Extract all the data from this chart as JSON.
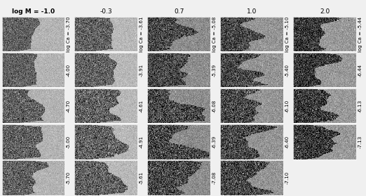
{
  "col_labels": [
    "log M = -1.0",
    "-0.3",
    "0.7",
    "1.0",
    "2.0"
  ],
  "col_label_fontsize": 6.5,
  "col_label_bold": [
    true,
    false,
    false,
    false,
    false
  ],
  "row_labels_per_col": [
    [
      "log Ca = -3.70",
      "-4.00",
      "-4.70",
      "-5.00",
      "-5.70"
    ],
    [
      "log Ca = -3.61",
      "-3.91",
      "-4.61",
      "-4.91",
      "-5.61"
    ],
    [
      "log Ca = -5.08",
      "-5.39",
      "-6.08",
      "-6.39",
      "-7.08"
    ],
    [
      "log Ca = -5.10",
      "-5.40",
      "-6.10",
      "-6.40",
      "-7.10"
    ],
    [
      "log Ca = -5.44",
      "-6.44",
      "-6.13",
      "-7.13",
      ""
    ]
  ],
  "n_cols": 5,
  "n_rows": 5,
  "label_fontsize": 5.0,
  "noise_seed_base": 42,
  "interface_x_per_cell": [
    [
      0.5,
      0.58,
      0.52,
      0.5,
      0.5
    ],
    [
      0.52,
      0.6,
      0.58,
      0.52,
      0.5
    ],
    [
      0.55,
      0.65,
      0.62,
      0.55,
      0.55
    ],
    [
      0.58,
      0.68,
      0.65,
      0.58,
      0.58
    ],
    [
      0.55,
      0.65,
      0.68,
      0.62,
      0.0
    ]
  ],
  "left_dark_base": [
    [
      0.38,
      0.38,
      0.28,
      0.28,
      0.22
    ],
    [
      0.38,
      0.38,
      0.28,
      0.28,
      0.22
    ],
    [
      0.38,
      0.38,
      0.28,
      0.28,
      0.22
    ],
    [
      0.38,
      0.38,
      0.28,
      0.28,
      0.22
    ],
    [
      0.38,
      0.38,
      0.28,
      0.28,
      0.0
    ]
  ],
  "right_light_base": [
    [
      0.7,
      0.72,
      0.55,
      0.58,
      0.6
    ],
    [
      0.7,
      0.72,
      0.55,
      0.58,
      0.6
    ],
    [
      0.7,
      0.72,
      0.55,
      0.58,
      0.6
    ],
    [
      0.7,
      0.72,
      0.55,
      0.58,
      0.6
    ],
    [
      0.7,
      0.72,
      0.55,
      0.58,
      0.0
    ]
  ],
  "left_noise_sigma": [
    [
      0.1,
      0.12,
      0.14,
      0.14,
      0.14
    ],
    [
      0.1,
      0.12,
      0.14,
      0.14,
      0.14
    ],
    [
      0.12,
      0.14,
      0.16,
      0.16,
      0.16
    ],
    [
      0.12,
      0.14,
      0.16,
      0.16,
      0.16
    ],
    [
      0.12,
      0.14,
      0.16,
      0.16,
      0.0
    ]
  ],
  "right_noise_sigma": [
    [
      0.04,
      0.04,
      0.06,
      0.06,
      0.06
    ],
    [
      0.04,
      0.04,
      0.06,
      0.06,
      0.06
    ],
    [
      0.04,
      0.04,
      0.06,
      0.06,
      0.06
    ],
    [
      0.04,
      0.04,
      0.06,
      0.06,
      0.06
    ],
    [
      0.04,
      0.04,
      0.06,
      0.06,
      0.0
    ]
  ],
  "interface_roughness": [
    [
      0.015,
      0.015,
      0.07,
      0.07,
      0.06
    ],
    [
      0.015,
      0.02,
      0.07,
      0.08,
      0.06
    ],
    [
      0.04,
      0.05,
      0.08,
      0.09,
      0.07
    ],
    [
      0.05,
      0.06,
      0.08,
      0.09,
      0.08
    ],
    [
      0.04,
      0.05,
      0.09,
      0.09,
      0.0
    ]
  ],
  "figure_bg": "#f0f0f0",
  "cell_border": "#ffffff"
}
